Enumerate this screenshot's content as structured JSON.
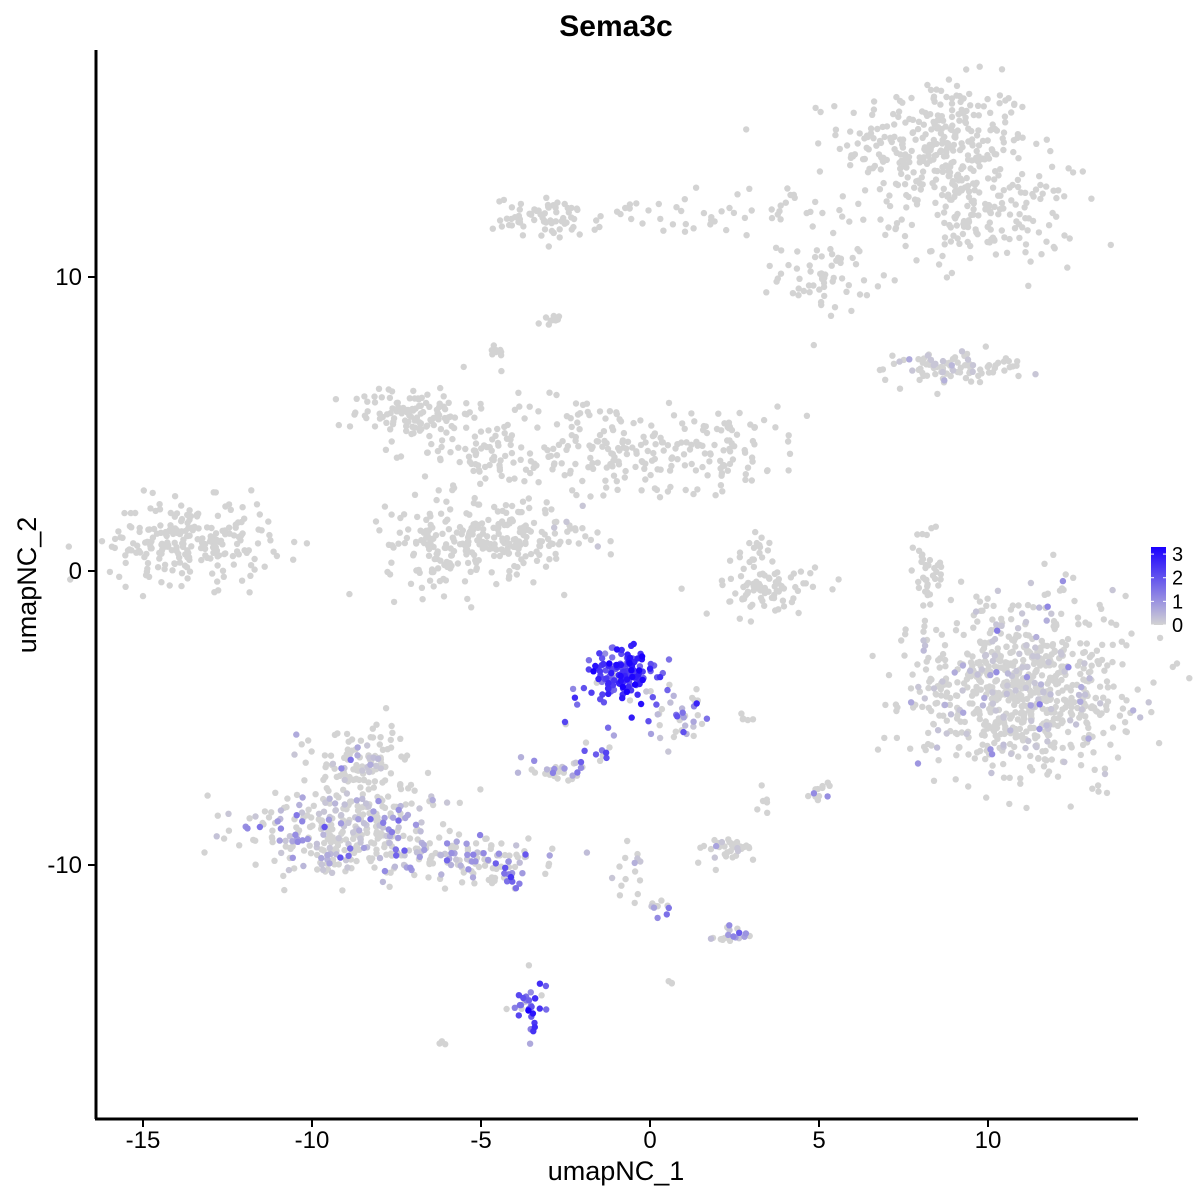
{
  "chart_data": {
    "type": "scatter",
    "title": "Sema3c",
    "xlabel": "umapNC_1",
    "ylabel": "umapNC_2",
    "xlim": [
      -16.3,
      14.4
    ],
    "ylim": [
      -18.5,
      17.8
    ],
    "x_ticks": [
      {
        "value": -15,
        "label": "-15"
      },
      {
        "value": -10,
        "label": "-10"
      },
      {
        "value": -5,
        "label": "-5"
      },
      {
        "value": 0,
        "label": "0"
      },
      {
        "value": 5,
        "label": "5"
      },
      {
        "value": 10,
        "label": "10"
      }
    ],
    "y_ticks": [
      {
        "value": 10,
        "label": "10"
      },
      {
        "value": 0,
        "label": "0"
      },
      {
        "value": -10,
        "label": "-10"
      }
    ],
    "grid": false,
    "color_scale": {
      "name": "",
      "min": 0,
      "max": 3.3,
      "low_color": "#d3d3d3",
      "high_color": "#1a00ff",
      "ticks": [
        {
          "value": 0,
          "label": "0"
        },
        {
          "value": 1,
          "label": "1"
        },
        {
          "value": 2,
          "label": "2"
        },
        {
          "value": 3,
          "label": "3"
        }
      ]
    },
    "legend_position": "right",
    "clusters": [
      {
        "center": [
          8.5,
          14.5
        ],
        "spread": [
          1.4,
          1.1
        ],
        "count": 320,
        "expr_mean": 0.0
      },
      {
        "center": [
          10.0,
          12.0
        ],
        "spread": [
          1.3,
          0.8
        ],
        "count": 160,
        "expr_mean": 0.0
      },
      {
        "center": [
          -3.0,
          12.0
        ],
        "spread": [
          0.8,
          0.35
        ],
        "count": 70,
        "expr_mean": 0.0
      },
      {
        "center": [
          2.5,
          12.2
        ],
        "spread": [
          2.2,
          0.4
        ],
        "count": 60,
        "expr_mean": 0.0
      },
      {
        "center": [
          5.2,
          10.0
        ],
        "spread": [
          0.7,
          0.6
        ],
        "count": 60,
        "expr_mean": 0.0
      },
      {
        "center": [
          -3.0,
          8.5
        ],
        "spread": [
          0.15,
          0.1
        ],
        "count": 10,
        "expr_mean": 0.0
      },
      {
        "center": [
          -4.6,
          7.4
        ],
        "spread": [
          0.15,
          0.2
        ],
        "count": 12,
        "expr_mean": 0.0
      },
      {
        "center": [
          9.0,
          6.9
        ],
        "spread": [
          1.0,
          0.3
        ],
        "count": 90,
        "expr_mean": 0.02
      },
      {
        "center": [
          -7.0,
          5.4
        ],
        "spread": [
          0.9,
          0.45
        ],
        "count": 110,
        "expr_mean": 0.0
      },
      {
        "center": [
          -5.0,
          4.0
        ],
        "spread": [
          0.9,
          0.5
        ],
        "count": 60,
        "expr_mean": 0.0
      },
      {
        "center": [
          -2.0,
          4.2
        ],
        "spread": [
          1.6,
          0.9
        ],
        "count": 120,
        "expr_mean": 0.0
      },
      {
        "center": [
          1.5,
          4.2
        ],
        "spread": [
          1.6,
          0.7
        ],
        "count": 130,
        "expr_mean": 0.0
      },
      {
        "center": [
          -6.0,
          0.9
        ],
        "spread": [
          0.9,
          0.8
        ],
        "count": 150,
        "expr_mean": 0.0
      },
      {
        "center": [
          -4.2,
          1.2
        ],
        "spread": [
          0.8,
          0.7
        ],
        "count": 120,
        "expr_mean": 0.0
      },
      {
        "center": [
          -13.6,
          1.0
        ],
        "spread": [
          1.2,
          0.7
        ],
        "count": 230,
        "expr_mean": 0.0
      },
      {
        "center": [
          -2.2,
          1.3
        ],
        "spread": [
          0.6,
          0.5
        ],
        "count": 25,
        "expr_mean": 0.05
      },
      {
        "center": [
          3.3,
          -0.6
        ],
        "spread": [
          0.8,
          0.4
        ],
        "count": 80,
        "expr_mean": 0.0
      },
      {
        "center": [
          3.2,
          0.6
        ],
        "spread": [
          0.3,
          0.4
        ],
        "count": 20,
        "expr_mean": 0.0
      },
      {
        "center": [
          8.3,
          -0.1
        ],
        "spread": [
          0.25,
          0.8
        ],
        "count": 40,
        "expr_mean": 0.0
      },
      {
        "center": [
          11.0,
          -4.0
        ],
        "spread": [
          1.6,
          1.4
        ],
        "count": 800,
        "expr_mean": 0.03
      },
      {
        "center": [
          -0.8,
          -3.5
        ],
        "spread": [
          0.55,
          0.45
        ],
        "count": 150,
        "expr_mean": 2.3
      },
      {
        "center": [
          0.7,
          -5.0
        ],
        "spread": [
          0.6,
          0.5
        ],
        "count": 40,
        "expr_mean": 1.0
      },
      {
        "center": [
          -1.6,
          -6.0
        ],
        "spread": [
          0.4,
          0.4
        ],
        "count": 15,
        "expr_mean": 1.2
      },
      {
        "center": [
          -2.5,
          -6.8
        ],
        "spread": [
          0.4,
          0.2
        ],
        "count": 30,
        "expr_mean": 1.0
      },
      {
        "center": [
          -8.5,
          -6.5
        ],
        "spread": [
          0.8,
          0.7
        ],
        "count": 120,
        "expr_mean": 0.2
      },
      {
        "center": [
          -8.8,
          -9.0
        ],
        "spread": [
          1.5,
          0.7
        ],
        "count": 350,
        "expr_mean": 0.5
      },
      {
        "center": [
          -5.2,
          -9.8
        ],
        "spread": [
          1.2,
          0.4
        ],
        "count": 100,
        "expr_mean": 0.9
      },
      {
        "center": [
          -4.2,
          -10.4
        ],
        "spread": [
          0.3,
          0.2
        ],
        "count": 15,
        "expr_mean": 1.6
      },
      {
        "center": [
          2.3,
          -9.5
        ],
        "spread": [
          0.4,
          0.25
        ],
        "count": 35,
        "expr_mean": 0.2
      },
      {
        "center": [
          2.4,
          -12.4
        ],
        "spread": [
          0.3,
          0.15
        ],
        "count": 20,
        "expr_mean": 0.9
      },
      {
        "center": [
          0.2,
          -11.5
        ],
        "spread": [
          0.2,
          0.15
        ],
        "count": 10,
        "expr_mean": 0.5
      },
      {
        "center": [
          -0.5,
          -10.3
        ],
        "spread": [
          0.2,
          0.6
        ],
        "count": 15,
        "expr_mean": 0.1
      },
      {
        "center": [
          -3.5,
          -14.8
        ],
        "spread": [
          0.25,
          0.5
        ],
        "count": 35,
        "expr_mean": 1.9
      },
      {
        "center": [
          5.0,
          -7.3
        ],
        "spread": [
          0.2,
          0.3
        ],
        "count": 12,
        "expr_mean": 0.4
      },
      {
        "center": [
          3.4,
          -7.7
        ],
        "spread": [
          0.1,
          0.3
        ],
        "count": 6,
        "expr_mean": 0.0
      },
      {
        "center": [
          -6.1,
          -16.0
        ],
        "spread": [
          0.1,
          0.1
        ],
        "count": 3,
        "expr_mean": 0.0
      },
      {
        "center": [
          0.6,
          -14.0
        ],
        "spread": [
          0.1,
          0.1
        ],
        "count": 3,
        "expr_mean": 0.0
      },
      {
        "center": [
          2.8,
          -5.0
        ],
        "spread": [
          0.2,
          0.1
        ],
        "count": 5,
        "expr_mean": 0.0
      }
    ]
  }
}
